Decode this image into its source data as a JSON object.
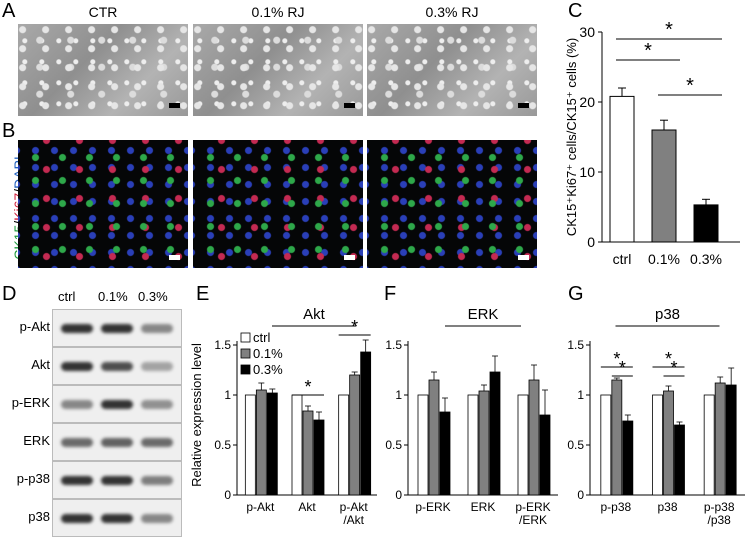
{
  "panel_labels": {
    "A": "A",
    "B": "B",
    "C": "C",
    "D": "D",
    "E": "E",
    "F": "F",
    "G": "G"
  },
  "panelA": {
    "columns": [
      "CTR",
      "0.1% RJ",
      "0.3% RJ"
    ]
  },
  "panelB": {
    "ylabel_parts": [
      {
        "text": "CK15",
        "color": "#1a9a3a"
      },
      {
        "text": "/",
        "color": "#000000"
      },
      {
        "text": "Ki67",
        "color": "#d01e3c"
      },
      {
        "text": "/",
        "color": "#000000"
      },
      {
        "text": "DAPI",
        "color": "#1f5fbf"
      }
    ]
  },
  "panelD": {
    "lanes": [
      "ctrl",
      "0.1%",
      "0.3%"
    ],
    "rows": [
      "p-Akt",
      "Akt",
      "p-ERK",
      "ERK",
      "p-p38",
      "p38"
    ],
    "intensity": [
      [
        1.0,
        1.05,
        0.55
      ],
      [
        1.0,
        0.85,
        0.4
      ],
      [
        0.55,
        1.0,
        0.5
      ],
      [
        0.7,
        0.75,
        0.7
      ],
      [
        1.0,
        1.0,
        0.6
      ],
      [
        1.0,
        1.0,
        0.55
      ]
    ]
  },
  "colors": {
    "ctrl": "#ffffff",
    "p01": "#808080",
    "p03": "#000000"
  },
  "chart_data": [
    {
      "panel": "C",
      "type": "bar",
      "categories": [
        "ctrl",
        "0.1%",
        "0.3%"
      ],
      "values": [
        20.8,
        16.0,
        5.3
      ],
      "errors": [
        1.2,
        1.4,
        0.8
      ],
      "ylabel": "CK15⁺Ki67⁺ cells/CK15⁺ cells (%)",
      "ylim": [
        0,
        30
      ],
      "yticks": [
        0,
        10,
        20,
        30
      ],
      "significance": [
        {
          "from": 0,
          "to": 1,
          "label": "*"
        },
        {
          "from": 1,
          "to": 2,
          "label": "*"
        },
        {
          "from": 0,
          "to": 2,
          "label": "*"
        }
      ]
    },
    {
      "panel": "E",
      "type": "bar",
      "title": "Akt",
      "categories": [
        "p-Akt",
        "Akt",
        "p-Akt\n/Akt"
      ],
      "series": [
        {
          "name": "ctrl",
          "values": [
            1.0,
            1.0,
            1.0
          ],
          "errors": [
            0,
            0,
            0
          ]
        },
        {
          "name": "0.1%",
          "values": [
            1.05,
            0.84,
            1.2
          ],
          "errors": [
            0.07,
            0.05,
            0.03
          ]
        },
        {
          "name": "0.3%",
          "values": [
            1.02,
            0.75,
            1.43
          ],
          "errors": [
            0.04,
            0.08,
            0.12
          ]
        }
      ],
      "ylabel": "Relative expression level",
      "ylim": [
        0,
        1.5
      ],
      "yticks": [
        0,
        0.5,
        1,
        1.5
      ],
      "legend": "top-left",
      "significance": [
        {
          "group": 1,
          "label": "*"
        },
        {
          "group": 2,
          "label": "*"
        }
      ]
    },
    {
      "panel": "F",
      "type": "bar",
      "title": "ERK",
      "categories": [
        "p-ERK",
        "ERK",
        "p-ERK\n/ERK"
      ],
      "series": [
        {
          "name": "ctrl",
          "values": [
            1.0,
            1.0,
            1.0
          ],
          "errors": [
            0,
            0,
            0
          ]
        },
        {
          "name": "0.1%",
          "values": [
            1.15,
            1.04,
            1.15
          ],
          "errors": [
            0.08,
            0.06,
            0.15
          ]
        },
        {
          "name": "0.3%",
          "values": [
            0.83,
            1.23,
            0.8
          ],
          "errors": [
            0.14,
            0.16,
            0.25
          ]
        }
      ],
      "ylim": [
        0,
        1.5
      ],
      "yticks": [
        0,
        0.5,
        1,
        1.5
      ],
      "significance": []
    },
    {
      "panel": "G",
      "type": "bar",
      "title": "p38",
      "categories": [
        "p-p38",
        "p38",
        "p-p38\n/p38"
      ],
      "series": [
        {
          "name": "ctrl",
          "values": [
            1.0,
            1.0,
            1.0
          ],
          "errors": [
            0,
            0,
            0
          ]
        },
        {
          "name": "0.1%",
          "values": [
            1.15,
            1.04,
            1.12
          ],
          "errors": [
            0.02,
            0.05,
            0.06
          ]
        },
        {
          "name": "0.3%",
          "values": [
            0.74,
            0.7,
            1.1
          ],
          "errors": [
            0.06,
            0.03,
            0.17
          ]
        }
      ],
      "ylim": [
        0,
        1.5
      ],
      "yticks": [
        0,
        0.5,
        1,
        1.5
      ],
      "significance": [
        {
          "group": 0,
          "pair": [
            0,
            2
          ],
          "label": "*"
        },
        {
          "group": 0,
          "pair": [
            1,
            2
          ],
          "label": "*"
        },
        {
          "group": 1,
          "pair": [
            0,
            2
          ],
          "label": "*"
        },
        {
          "group": 1,
          "pair": [
            1,
            2
          ],
          "label": "*"
        }
      ]
    }
  ]
}
